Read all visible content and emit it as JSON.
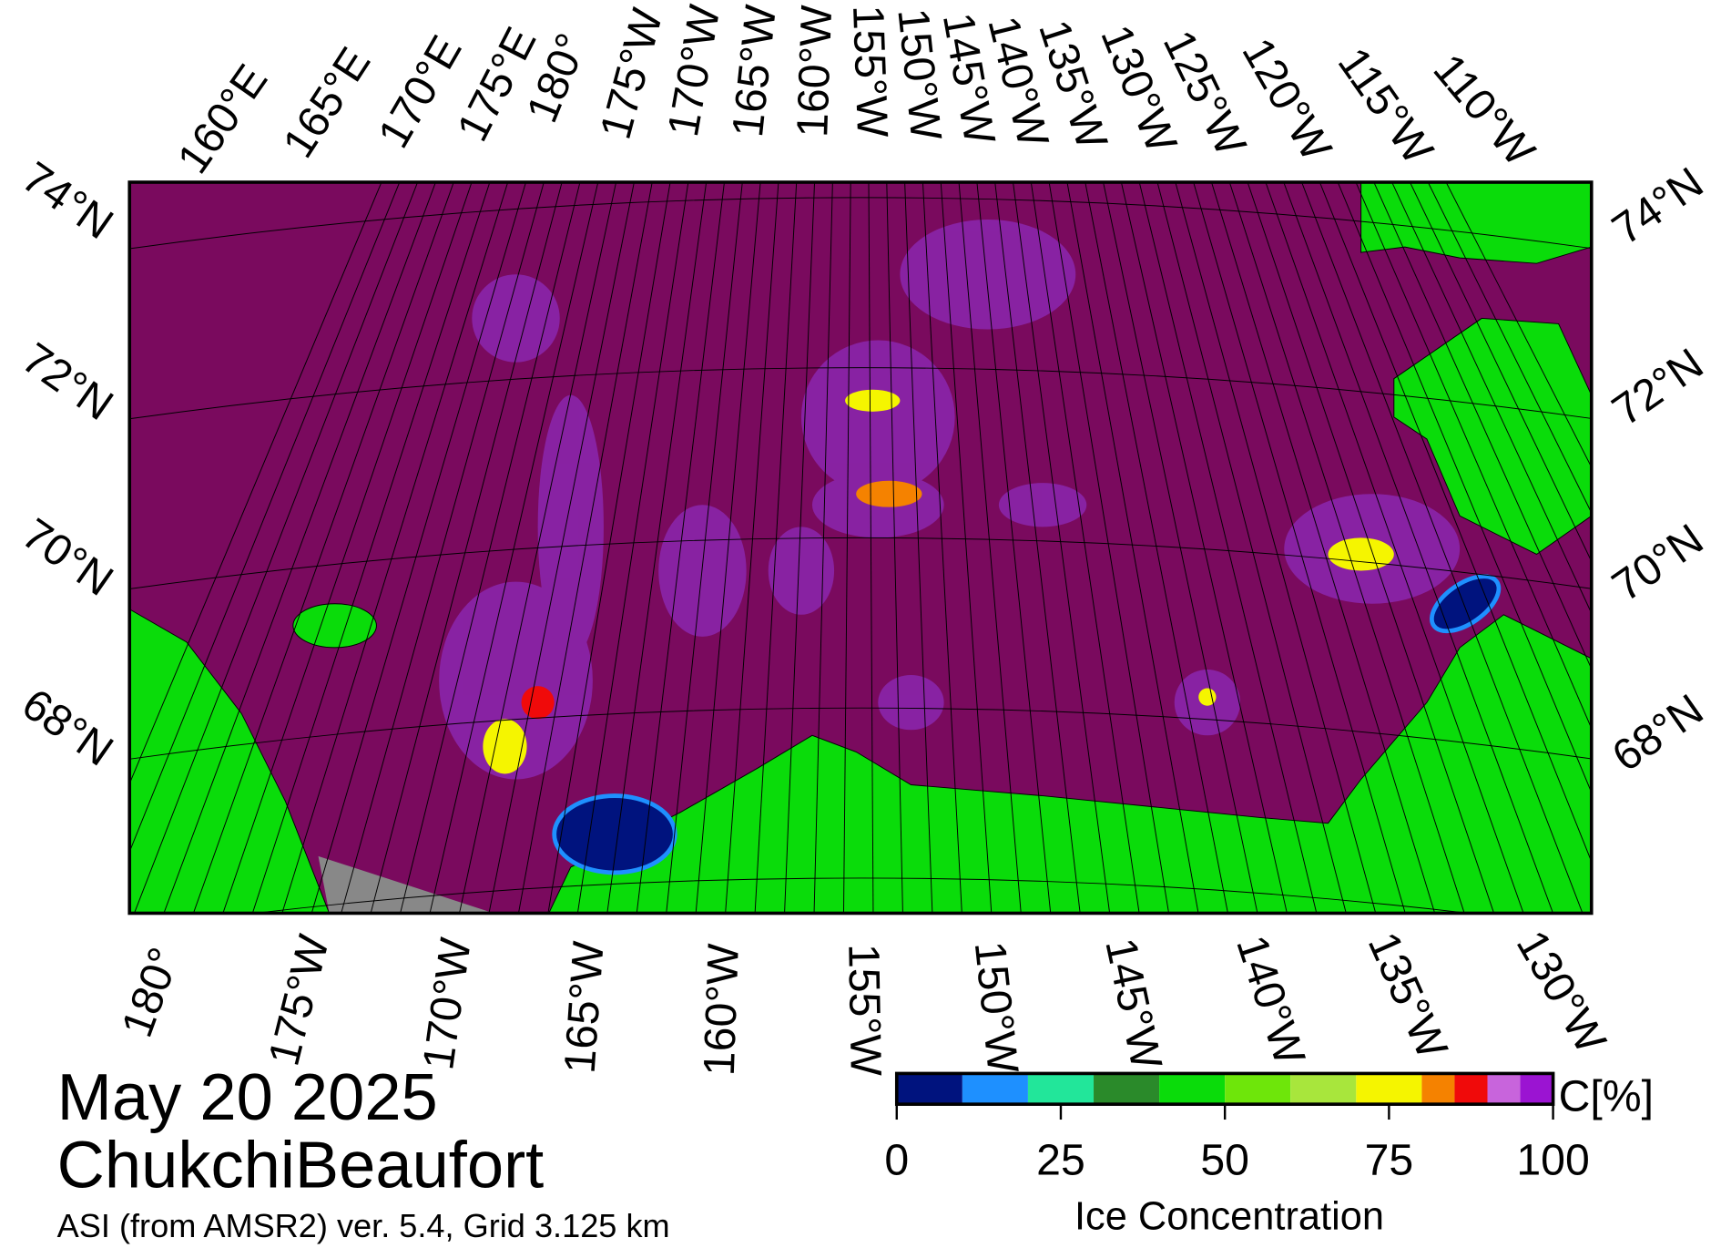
{
  "map": {
    "lon_labels_top": [
      "160°E",
      "165°E",
      "170°E",
      "175°E",
      "180°",
      "175°W",
      "170°W",
      "165°W",
      "160°W",
      "155°W",
      "150°W",
      "145°W",
      "140°W",
      "135°W",
      "130°W",
      "125°W",
      "120°W",
      "115°W",
      "110°W"
    ],
    "lon_labels_bottom": [
      "180°",
      "175°W",
      "170°W",
      "165°W",
      "160°W",
      "155°W",
      "150°W",
      "145°W",
      "140°W",
      "135°W",
      "130°W"
    ],
    "lat_labels_left": [
      "74°N",
      "72°N",
      "70°N",
      "68°N"
    ],
    "lat_labels_right": [
      "74°N",
      "72°N",
      "70°N",
      "68°N"
    ]
  },
  "colorbar": {
    "bounds": [
      0,
      10,
      20,
      30,
      40,
      50,
      60,
      70,
      80,
      85,
      90,
      95,
      100
    ],
    "colors": [
      "#00137e",
      "#1e90ff",
      "#22e69a",
      "#2a8a2a",
      "#0adc0a",
      "#6ee60a",
      "#a8e63c",
      "#f5f500",
      "#f58200",
      "#f00a0a",
      "#c864dc",
      "#9b14d2"
    ],
    "ticks": [
      0,
      25,
      50,
      75,
      100
    ],
    "label": "Ice Concentration",
    "unit": "C[%]"
  },
  "caption": {
    "date": "May 20 2025",
    "region": "ChukchiBeaufort",
    "source": "ASI (from AMSR2) ver. 5.4,  Grid 3.125 km"
  }
}
